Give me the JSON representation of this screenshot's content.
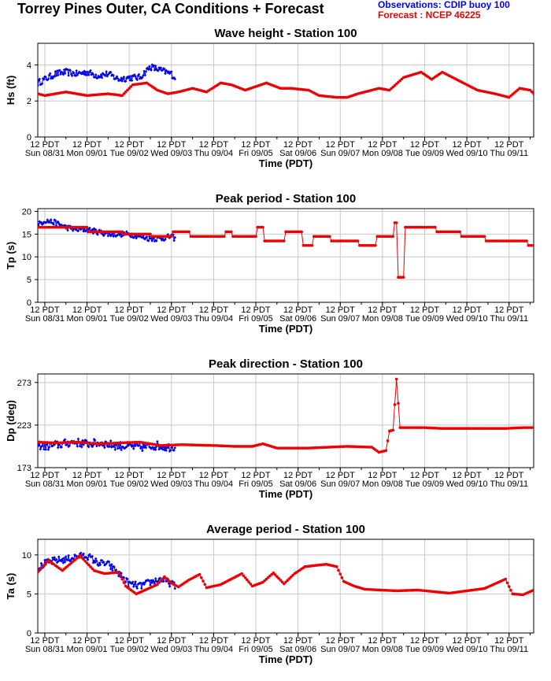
{
  "header": {
    "title": "Torrey Pines Outer, CA Conditions + Forecast",
    "observations_label": "Observations: CDIP buoy 100",
    "forecast_label": "Forecast : NCEP 46225"
  },
  "colors": {
    "observations": "#0000ee",
    "forecast": "#ee0000",
    "grid": "#c8c8c8"
  },
  "time_axis": {
    "label": "Time (PDT)",
    "range_hours": [
      -4,
      278
    ],
    "ticks": [
      {
        "hour": 0,
        "line1": "12 PDT",
        "line2": "Sun 08/31"
      },
      {
        "hour": 24,
        "line1": "12 PDT",
        "line2": "Mon 09/01"
      },
      {
        "hour": 48,
        "line1": "12 PDT",
        "line2": "Tue 09/02"
      },
      {
        "hour": 72,
        "line1": "12 PDT",
        "line2": "Wed 09/03"
      },
      {
        "hour": 96,
        "line1": "12 PDT",
        "line2": "Thu 09/04"
      },
      {
        "hour": 120,
        "line1": "12 PDT",
        "line2": "Fri 09/05"
      },
      {
        "hour": 144,
        "line1": "12 PDT",
        "line2": "Sat 09/06"
      },
      {
        "hour": 168,
        "line1": "12 PDT",
        "line2": "Sun 09/07"
      },
      {
        "hour": 192,
        "line1": "12 PDT",
        "line2": "Mon 09/08"
      },
      {
        "hour": 216,
        "line1": "12 PDT",
        "line2": "Tue 09/09"
      },
      {
        "hour": 240,
        "line1": "12 PDT",
        "line2": "Wed 09/10"
      },
      {
        "hour": 264,
        "line1": "12 PDT",
        "line2": "Thu 09/11"
      }
    ]
  },
  "chart_data": [
    {
      "type": "line",
      "title": "Wave height - Station 100",
      "ylabel": "Hs (ft)",
      "ylim": [
        0,
        5.2
      ],
      "yticks": [
        0,
        2,
        4
      ],
      "grid": true,
      "series": [
        {
          "role": "observations",
          "kind": "noisy",
          "noise": 0.18,
          "x": [
            -4,
            0,
            6,
            12,
            18,
            24,
            30,
            36,
            42,
            48,
            54,
            60,
            66,
            72,
            74
          ],
          "y": [
            3.0,
            3.2,
            3.5,
            3.6,
            3.5,
            3.6,
            3.4,
            3.5,
            3.2,
            3.3,
            3.3,
            3.9,
            3.7,
            3.5,
            3.3
          ]
        },
        {
          "role": "forecast",
          "kind": "smooth",
          "x": [
            -4,
            0,
            12,
            24,
            36,
            44,
            50,
            58,
            64,
            70,
            76,
            84,
            92,
            100,
            106,
            114,
            126,
            134,
            140,
            150,
            156,
            166,
            172,
            178,
            190,
            196,
            204,
            214,
            220,
            226,
            232,
            240,
            246,
            256,
            264,
            270,
            276,
            278
          ],
          "y": [
            2.4,
            2.3,
            2.5,
            2.3,
            2.4,
            2.3,
            2.9,
            3.0,
            2.6,
            2.4,
            2.5,
            2.7,
            2.5,
            3.0,
            2.9,
            2.6,
            3.0,
            2.7,
            2.7,
            2.6,
            2.3,
            2.2,
            2.2,
            2.4,
            2.7,
            2.6,
            3.3,
            3.6,
            3.2,
            3.6,
            3.3,
            2.9,
            2.6,
            2.4,
            2.2,
            2.7,
            2.6,
            2.4
          ]
        }
      ]
    },
    {
      "type": "line",
      "title": "Peak period - Station 100",
      "ylabel": "Tp (s)",
      "ylim": [
        0,
        20.6
      ],
      "yticks": [
        0,
        5,
        10,
        15,
        20
      ],
      "grid": true,
      "series": [
        {
          "role": "observations",
          "kind": "noisy",
          "noise": 0.6,
          "x": [
            -4,
            0,
            6,
            12,
            18,
            24,
            30,
            36,
            42,
            48,
            54,
            60,
            66,
            72,
            74
          ],
          "y": [
            17,
            18,
            17.5,
            16.5,
            16,
            16,
            15.5,
            15,
            15,
            15,
            14.5,
            14,
            14,
            14.5,
            14
          ]
        },
        {
          "role": "forecast",
          "kind": "step",
          "x": [
            -4,
            2,
            4,
            20,
            24,
            40,
            44,
            56,
            60,
            68,
            72,
            82,
            102,
            106,
            112,
            120,
            124,
            132,
            136,
            144,
            146,
            152,
            162,
            178,
            188,
            198,
            200,
            202,
            204,
            208,
            222,
            236,
            250,
            274,
            278
          ],
          "y": [
            16.5,
            16.5,
            16.5,
            16.5,
            15.5,
            15.5,
            15.0,
            15.0,
            14.5,
            14.5,
            15.5,
            14.5,
            15.5,
            14.5,
            14.5,
            16.5,
            13.5,
            13.5,
            15.5,
            15.5,
            12.5,
            14.5,
            13.5,
            12.5,
            14.5,
            17.5,
            5.5,
            5.5,
            16.5,
            16.5,
            15.5,
            14.5,
            13.5,
            12.5,
            12.5
          ]
        }
      ]
    },
    {
      "type": "line",
      "title": "Peak direction - Station 100",
      "ylabel": "Dp (deg)",
      "ylim": [
        173,
        283
      ],
      "yticks": [
        173,
        223,
        273
      ],
      "grid": true,
      "series": [
        {
          "role": "observations",
          "kind": "noisy",
          "noise": 5,
          "x": [
            -4,
            0,
            8,
            16,
            24,
            32,
            40,
            48,
            56,
            64,
            70,
            74
          ],
          "y": [
            200,
            198,
            200,
            203,
            201,
            202,
            199,
            198,
            197,
            199,
            197,
            198
          ]
        },
        {
          "role": "forecast",
          "kind": "smooth",
          "x": [
            -4,
            6,
            18,
            30,
            42,
            54,
            66,
            78,
            96,
            108,
            118,
            124,
            132,
            150,
            172,
            186,
            190,
            194,
            196,
            198,
            200,
            202,
            206,
            216,
            226,
            240,
            262,
            272,
            278
          ],
          "y": [
            203,
            202,
            203,
            201,
            202,
            203,
            199,
            200,
            199,
            198,
            198,
            201,
            196,
            196,
            198,
            197,
            191,
            193,
            216,
            217,
            277,
            220,
            220,
            220,
            219,
            219,
            219,
            220,
            220
          ]
        }
      ]
    },
    {
      "type": "line",
      "title": "Average period - Station 100",
      "ylabel": "Ta (s)",
      "ylim": [
        0,
        12
      ],
      "yticks": [
        0,
        5,
        10
      ],
      "grid": true,
      "series": [
        {
          "role": "observations",
          "kind": "noisy",
          "noise": 0.45,
          "x": [
            -4,
            0,
            6,
            12,
            18,
            24,
            30,
            36,
            42,
            48,
            54,
            60,
            66,
            72,
            74
          ],
          "y": [
            8.2,
            8.9,
            9.3,
            9.4,
            9.8,
            9.9,
            9.0,
            8.8,
            7.6,
            6.3,
            6.0,
            6.5,
            6.9,
            6.3,
            6.0
          ]
        },
        {
          "role": "forecast",
          "kind": "smooth",
          "x": [
            -4,
            2,
            10,
            20,
            28,
            34,
            42,
            46,
            52,
            58,
            64,
            68,
            72,
            76,
            82,
            88,
            92,
            96,
            100,
            112,
            118,
            124,
            130,
            136,
            142,
            148,
            160,
            166,
            170,
            176,
            182,
            200,
            212,
            230,
            250,
            262,
            266,
            272,
            278
          ],
          "y": [
            7.8,
            9.3,
            8.0,
            9.9,
            8.0,
            7.6,
            7.8,
            6.0,
            5.0,
            5.6,
            6.2,
            7.2,
            6.4,
            5.9,
            6.8,
            7.5,
            5.8,
            6.0,
            6.2,
            7.6,
            6.0,
            6.5,
            7.7,
            6.3,
            7.6,
            8.5,
            8.8,
            8.5,
            6.6,
            6.0,
            5.6,
            5.4,
            5.5,
            5.1,
            5.7,
            6.9,
            5.0,
            4.9,
            5.5
          ]
        }
      ]
    }
  ]
}
